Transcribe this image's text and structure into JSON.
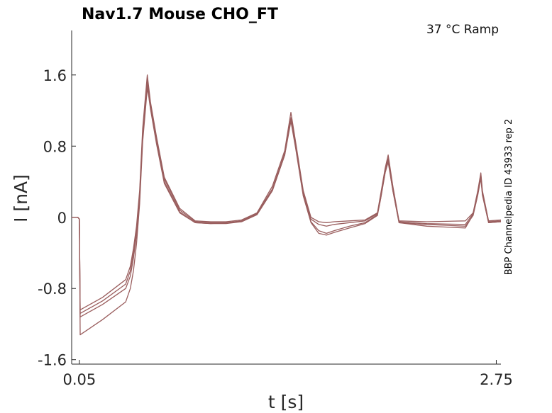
{
  "chart_data": {
    "type": "line",
    "title": "Nav1.7  Mouse  CHO_FT",
    "condition": "37 °C  Ramp",
    "side_label": "BBP Channelpedia ID 43933 rep 2",
    "xlabel": "t [s]",
    "ylabel": "I [nA]",
    "x_ticks": [
      0.05,
      2.75
    ],
    "x_tick_labels": [
      "0.05",
      "2.75"
    ],
    "y_ticks": [
      -1.6,
      -0.8,
      0,
      0.8,
      1.6
    ],
    "y_tick_labels": [
      "-1.6",
      "-0.8",
      "0",
      "0.8",
      "1.6"
    ],
    "xlim": [
      0.0,
      2.78
    ],
    "ylim": [
      -1.65,
      2.1
    ],
    "grid": false,
    "line_color": "#9a5e5e",
    "series": [
      {
        "x": [
          0,
          0.04,
          0.05,
          0.055,
          0.2,
          0.35,
          0.38,
          0.4,
          0.42,
          0.44,
          0.46,
          0.49,
          0.5,
          0.51,
          0.55,
          0.6,
          0.7,
          0.8,
          0.9,
          1.0,
          1.1,
          1.2,
          1.3,
          1.38,
          1.42,
          1.45,
          1.5,
          1.55,
          1.6,
          1.65,
          1.7,
          1.8,
          1.9,
          1.98,
          2.0,
          2.03,
          2.05,
          2.08,
          2.12,
          2.3,
          2.55,
          2.6,
          2.63,
          2.65,
          2.66,
          2.7,
          2.78
        ],
        "y": [
          0.0,
          0.0,
          -0.02,
          -1.04,
          -0.9,
          -0.7,
          -0.55,
          -0.35,
          -0.1,
          0.3,
          1.0,
          1.6,
          1.45,
          1.3,
          0.9,
          0.45,
          0.1,
          -0.04,
          -0.05,
          -0.05,
          -0.03,
          0.05,
          0.35,
          0.75,
          1.18,
          0.85,
          0.3,
          0.0,
          -0.05,
          -0.06,
          -0.05,
          -0.04,
          -0.03,
          0.05,
          0.25,
          0.55,
          0.7,
          0.35,
          -0.04,
          -0.05,
          -0.04,
          0.05,
          0.3,
          0.5,
          0.3,
          -0.04,
          -0.03
        ]
      },
      {
        "x": [
          0,
          0.04,
          0.05,
          0.055,
          0.2,
          0.35,
          0.38,
          0.4,
          0.42,
          0.44,
          0.46,
          0.49,
          0.5,
          0.51,
          0.55,
          0.6,
          0.7,
          0.8,
          0.9,
          1.0,
          1.1,
          1.2,
          1.3,
          1.38,
          1.42,
          1.45,
          1.5,
          1.55,
          1.6,
          1.65,
          1.7,
          1.8,
          1.9,
          1.98,
          2.0,
          2.03,
          2.05,
          2.08,
          2.12,
          2.3,
          2.55,
          2.6,
          2.63,
          2.65,
          2.66,
          2.7,
          2.78
        ],
        "y": [
          0.0,
          0.0,
          -0.02,
          -1.08,
          -0.94,
          -0.75,
          -0.6,
          -0.4,
          -0.14,
          0.25,
          0.95,
          1.55,
          1.42,
          1.28,
          0.88,
          0.43,
          0.08,
          -0.05,
          -0.06,
          -0.06,
          -0.04,
          0.04,
          0.32,
          0.72,
          1.12,
          0.82,
          0.28,
          -0.02,
          -0.08,
          -0.1,
          -0.08,
          -0.06,
          -0.04,
          0.04,
          0.22,
          0.52,
          0.66,
          0.33,
          -0.05,
          -0.07,
          -0.08,
          0.04,
          0.28,
          0.48,
          0.28,
          -0.05,
          -0.04
        ]
      },
      {
        "x": [
          0,
          0.04,
          0.05,
          0.055,
          0.2,
          0.35,
          0.38,
          0.4,
          0.42,
          0.44,
          0.46,
          0.49,
          0.5,
          0.51,
          0.55,
          0.6,
          0.7,
          0.8,
          0.9,
          1.0,
          1.1,
          1.2,
          1.3,
          1.38,
          1.42,
          1.45,
          1.5,
          1.55,
          1.6,
          1.65,
          1.7,
          1.8,
          1.9,
          1.98,
          2.0,
          2.03,
          2.05,
          2.08,
          2.12,
          2.3,
          2.55,
          2.6,
          2.63,
          2.65,
          2.66,
          2.7,
          2.78
        ],
        "y": [
          0.0,
          0.0,
          -0.02,
          -1.12,
          -0.98,
          -0.8,
          -0.66,
          -0.46,
          -0.2,
          0.2,
          0.9,
          1.5,
          1.38,
          1.25,
          0.85,
          0.4,
          0.06,
          -0.06,
          -0.07,
          -0.07,
          -0.05,
          0.03,
          0.3,
          0.7,
          1.1,
          0.8,
          0.25,
          -0.05,
          -0.15,
          -0.18,
          -0.15,
          -0.1,
          -0.06,
          0.03,
          0.2,
          0.5,
          0.64,
          0.3,
          -0.06,
          -0.1,
          -0.12,
          0.03,
          0.26,
          0.45,
          0.26,
          -0.06,
          -0.05
        ]
      },
      {
        "x": [
          0,
          0.04,
          0.05,
          0.055,
          0.2,
          0.35,
          0.38,
          0.4,
          0.42,
          0.44,
          0.46,
          0.49,
          0.5,
          0.51,
          0.55,
          0.6,
          0.7,
          0.8,
          0.9,
          1.0,
          1.1,
          1.2,
          1.3,
          1.38,
          1.42,
          1.45,
          1.5,
          1.55,
          1.6,
          1.65,
          1.7,
          1.8,
          1.9,
          1.98,
          2.0,
          2.03,
          2.05,
          2.08,
          2.12,
          2.3,
          2.55,
          2.6,
          2.63,
          2.65,
          2.66,
          2.7,
          2.78
        ],
        "y": [
          0.0,
          0.0,
          -0.02,
          -1.32,
          -1.15,
          -0.95,
          -0.8,
          -0.6,
          -0.3,
          0.15,
          0.85,
          1.45,
          1.35,
          1.22,
          0.82,
          0.38,
          0.05,
          -0.06,
          -0.07,
          -0.06,
          -0.05,
          0.03,
          0.3,
          0.7,
          1.08,
          0.78,
          0.24,
          -0.06,
          -0.18,
          -0.2,
          -0.17,
          -0.12,
          -0.07,
          0.02,
          0.2,
          0.5,
          0.62,
          0.3,
          -0.06,
          -0.08,
          -0.1,
          0.02,
          0.25,
          0.44,
          0.25,
          -0.06,
          -0.05
        ]
      }
    ]
  }
}
